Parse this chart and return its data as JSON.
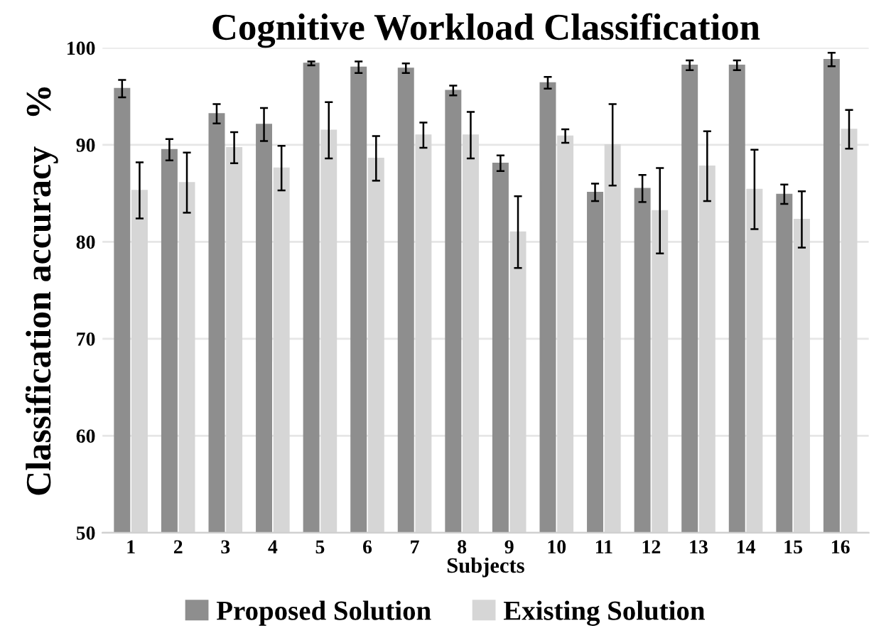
{
  "chart_data": {
    "type": "bar",
    "title": "Cognitive Workload Classification",
    "xlabel": "Subjects",
    "ylabel": "Classification accuracy   %",
    "categories": [
      "1",
      "2",
      "3",
      "4",
      "5",
      "6",
      "7",
      "8",
      "9",
      "10",
      "11",
      "12",
      "13",
      "14",
      "15",
      "16"
    ],
    "series": [
      {
        "name": "Proposed Solution",
        "color": "#8e8e8e",
        "values": [
          95.8,
          89.5,
          93.2,
          92.1,
          98.4,
          98.0,
          97.9,
          95.6,
          88.1,
          96.4,
          85.1,
          85.5,
          98.2,
          98.2,
          84.9,
          98.8
        ],
        "errors": [
          0.9,
          1.1,
          1.0,
          1.7,
          0.2,
          0.6,
          0.5,
          0.5,
          0.8,
          0.6,
          0.9,
          1.4,
          0.5,
          0.5,
          1.0,
          0.7
        ]
      },
      {
        "name": "Existing Solution",
        "color": "#d6d6d6",
        "values": [
          85.3,
          86.1,
          89.7,
          87.6,
          91.5,
          88.6,
          91.0,
          91.0,
          81.0,
          90.9,
          90.0,
          83.2,
          87.8,
          85.4,
          82.3,
          91.6
        ],
        "errors": [
          2.9,
          3.1,
          1.6,
          2.3,
          2.9,
          2.3,
          1.3,
          2.4,
          3.7,
          0.7,
          4.2,
          4.4,
          3.6,
          4.1,
          2.9,
          2.0
        ]
      }
    ],
    "ylim": [
      50,
      100
    ],
    "yticks": [
      50,
      60,
      70,
      80,
      90,
      100
    ],
    "grid": "y",
    "legend": "bottom"
  }
}
